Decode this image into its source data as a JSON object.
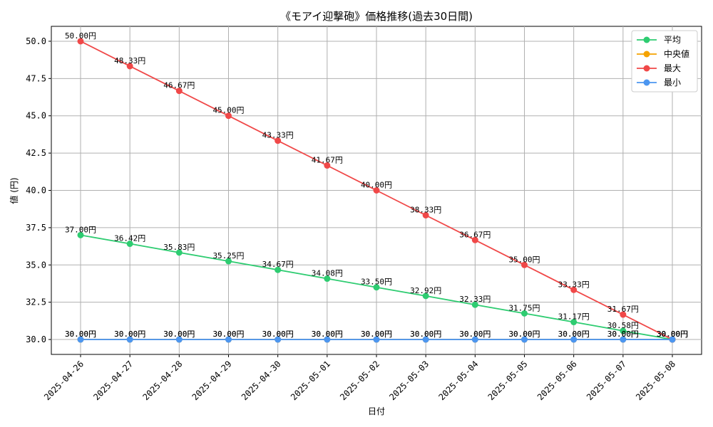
{
  "chart_data": {
    "type": "line",
    "title": "《モアイ迎撃砲》価格推移(過去30日間)",
    "xlabel": "日付",
    "ylabel": "値 (円)",
    "ylim": [
      29.0,
      51.0
    ],
    "yticks": [
      30.0,
      32.5,
      35.0,
      37.5,
      40.0,
      42.5,
      45.0,
      47.5,
      50.0
    ],
    "ytick_labels": [
      "30.0",
      "32.5",
      "35.0",
      "37.5",
      "40.0",
      "42.5",
      "45.0",
      "47.5",
      "50.0"
    ],
    "grid": true,
    "legend_position": "top-right",
    "categories": [
      "2025-04-26",
      "2025-04-27",
      "2025-04-28",
      "2025-04-29",
      "2025-04-30",
      "2025-05-01",
      "2025-05-02",
      "2025-05-03",
      "2025-05-04",
      "2025-05-05",
      "2025-05-06",
      "2025-05-07",
      "2025-05-08"
    ],
    "series": [
      {
        "name": "平均",
        "color": "#2ecc71",
        "values": [
          37.0,
          36.42,
          35.83,
          35.25,
          34.67,
          34.08,
          33.5,
          32.92,
          32.33,
          31.75,
          31.17,
          30.58,
          30.0
        ],
        "labels": [
          "37.00円",
          "36.42円",
          "35.83円",
          "35.25円",
          "34.67円",
          "34.08円",
          "33.50円",
          "32.92円",
          "32.33円",
          "31.75円",
          "31.17円",
          "30.58円",
          "30.00円"
        ]
      },
      {
        "name": "中央値",
        "color": "#f5a300",
        "values": [
          30.0,
          30.0,
          30.0,
          30.0,
          30.0,
          30.0,
          30.0,
          30.0,
          30.0,
          30.0,
          30.0,
          30.0,
          30.0
        ],
        "labels": [
          "30.00円",
          "30.00円",
          "30.00円",
          "30.00円",
          "30.00円",
          "30.00円",
          "30.00円",
          "30.00円",
          "30.00円",
          "30.00円",
          "30.00円",
          "30.00円",
          "30.00円"
        ]
      },
      {
        "name": "最大",
        "color": "#f04848",
        "values": [
          50.0,
          48.33,
          46.67,
          45.0,
          43.33,
          41.67,
          40.0,
          38.33,
          36.67,
          35.0,
          33.33,
          31.67,
          30.0
        ],
        "labels": [
          "50.00円",
          "48.33円",
          "46.67円",
          "45.00円",
          "43.33円",
          "41.67円",
          "40.00円",
          "38.33円",
          "36.67円",
          "35.00円",
          "33.33円",
          "31.67円",
          "30.00円"
        ]
      },
      {
        "name": "最小",
        "color": "#4c96f0",
        "values": [
          30.0,
          30.0,
          30.0,
          30.0,
          30.0,
          30.0,
          30.0,
          30.0,
          30.0,
          30.0,
          30.0,
          30.0,
          30.0
        ],
        "labels": [
          "30.00円",
          "30.00円",
          "30.00円",
          "30.00円",
          "30.00円",
          "30.00円",
          "30.00円",
          "30.00円",
          "30.00円",
          "30.00円",
          "30.00円",
          "30.00円",
          "30.00円"
        ]
      }
    ]
  }
}
